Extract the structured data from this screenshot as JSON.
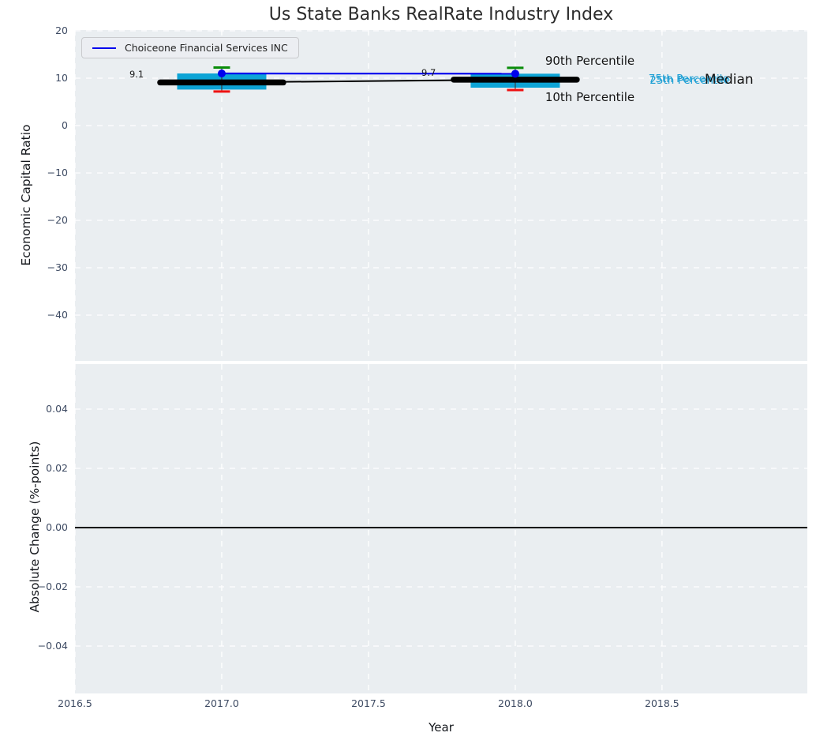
{
  "figure": {
    "title": "Us State Banks RealRate Industry Index",
    "legend": {
      "label": "Choiceone Financial Services INC"
    },
    "colors": {
      "plot_bg": "#eaeef1",
      "grid": "#ffffff",
      "company_line": "#0000ee",
      "box_fill": "#0da4d6",
      "p90_cap": "#098c09",
      "p10_cap": "#ee1111",
      "median_line": "#000000",
      "zero_line": "#000000",
      "tick_label": "#3e4b63",
      "percentile_text": "#1d9fd4"
    }
  },
  "chart_data": [
    {
      "type": "boxplot",
      "title": "Us State Banks RealRate Industry Index",
      "xlabel": "Year",
      "ylabel": "Economic Capital Ratio",
      "xlim": [
        2016.5,
        2018.995
      ],
      "ylim": [
        -49.67,
        20.17
      ],
      "grid": true,
      "legend_position": "upper left",
      "xticks": [
        "2016.5",
        "2017.0",
        "2017.5",
        "2018.0",
        "2018.5"
      ],
      "xtick_values": [
        2016.5,
        2017.0,
        2017.5,
        2018.0,
        2018.5
      ],
      "yticks": [
        "20",
        "10",
        "0",
        "−10",
        "−20",
        "−30",
        "−40"
      ],
      "ytick_values": [
        20,
        10,
        0,
        -10,
        -20,
        -30,
        -40
      ],
      "series": [
        {
          "name": "Choiceone Financial Services INC",
          "type": "line+marker",
          "color": "#0000ee",
          "x": [
            2017,
            2018
          ],
          "y": [
            11.0,
            10.95
          ]
        },
        {
          "name": "Median",
          "type": "thick-line",
          "color": "#000000",
          "x": [
            2017,
            2018
          ],
          "y": [
            9.1,
            9.7
          ]
        }
      ],
      "boxes": [
        {
          "year": 2017,
          "p90": 12.25,
          "q3": 11.0,
          "median": 9.1,
          "q1": 7.6,
          "p10": 7.2
        },
        {
          "year": 2018,
          "p90": 12.2,
          "q3": 10.95,
          "median": 9.7,
          "q1": 8.0,
          "p10": 7.5
        }
      ],
      "value_annotations": [
        {
          "text": "9.1",
          "x": 2016.71,
          "y": 10.8
        },
        {
          "text": "9.7",
          "x": 2017.705,
          "y": 11.2
        }
      ],
      "label_annotations": [
        {
          "text": "90th Percentile",
          "x": 2018.102,
          "y": 13.67,
          "color": "#161616",
          "size": 15
        },
        {
          "text": "10th Percentile",
          "x": 2018.102,
          "y": 6.05,
          "color": "#161616",
          "size": 15
        },
        {
          "text": "75th Percentile",
          "x": 2018.454,
          "y": 9.85,
          "color": "#1d9fd4",
          "size": 13.5
        },
        {
          "text": "25th Percentile",
          "x": 2018.458,
          "y": 9.45,
          "color": "#1d9fd4",
          "size": 13.5
        },
        {
          "text": "Median",
          "x": 2018.645,
          "y": 9.67,
          "color": "#111111",
          "size": 17
        }
      ]
    },
    {
      "type": "line",
      "xlabel": "Year",
      "ylabel": "Absolute Change (%-points)",
      "xlim": [
        2016.5,
        2018.995
      ],
      "ylim": [
        -0.056,
        0.0552
      ],
      "grid": true,
      "zero_line": 0.0,
      "series": [],
      "xticks": [
        "2016.5",
        "2017.0",
        "2017.5",
        "2018.0",
        "2018.5"
      ],
      "xtick_values": [
        2016.5,
        2017.0,
        2017.5,
        2018.0,
        2018.5
      ],
      "yticks": [
        "0.04",
        "0.02",
        "0.00",
        "−0.02",
        "−0.04"
      ],
      "ytick_values": [
        0.04,
        0.02,
        0.0,
        -0.02,
        -0.04
      ]
    }
  ]
}
